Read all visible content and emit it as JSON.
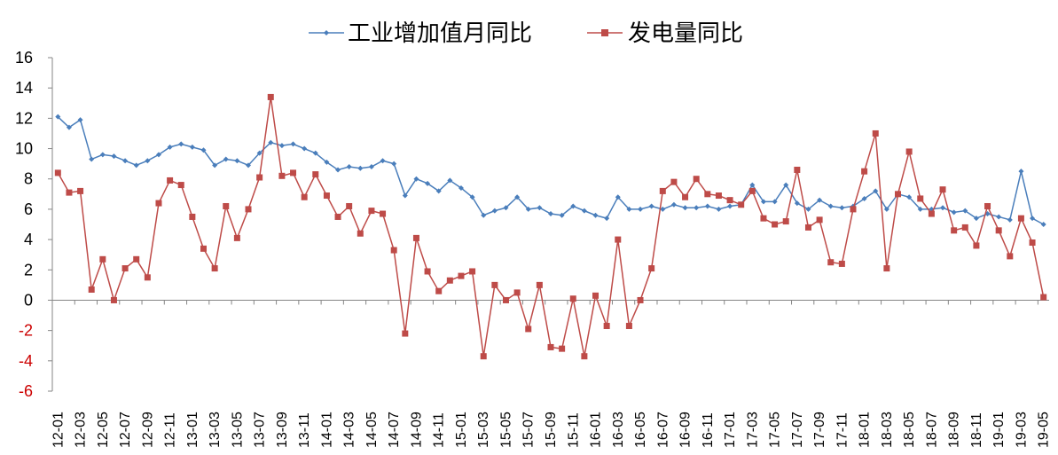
{
  "chart_data": {
    "type": "line",
    "ylim": [
      -6,
      16
    ],
    "yticks": [
      -6,
      -4,
      -2,
      0,
      2,
      4,
      6,
      8,
      10,
      12,
      14,
      16
    ],
    "negative_tick_color": "#cc0000",
    "grid": false,
    "legend_position": "top",
    "x": [
      "12-01",
      "12-02",
      "12-03",
      "12-04",
      "12-05",
      "12-06",
      "12-07",
      "12-08",
      "12-09",
      "12-10",
      "12-11",
      "12-12",
      "13-01",
      "13-02",
      "13-03",
      "13-04",
      "13-05",
      "13-06",
      "13-07",
      "13-08",
      "13-09",
      "13-10",
      "13-11",
      "13-12",
      "14-01",
      "14-02",
      "14-03",
      "14-04",
      "14-05",
      "14-06",
      "14-07",
      "14-08",
      "14-09",
      "14-10",
      "14-11",
      "14-12",
      "15-01",
      "15-02",
      "15-03",
      "15-04",
      "15-05",
      "15-06",
      "15-07",
      "15-08",
      "15-09",
      "15-10",
      "15-11",
      "15-12",
      "16-01",
      "16-02",
      "16-03",
      "16-04",
      "16-05",
      "16-06",
      "16-07",
      "16-08",
      "16-09",
      "16-10",
      "16-11",
      "16-12",
      "17-01",
      "17-02",
      "17-03",
      "17-04",
      "17-05",
      "17-06",
      "17-07",
      "17-08",
      "17-09",
      "17-10",
      "17-11",
      "17-12",
      "18-01",
      "18-02",
      "18-03",
      "18-04",
      "18-05",
      "18-06",
      "18-07",
      "18-08",
      "18-09",
      "18-10",
      "18-11",
      "18-12",
      "19-01",
      "19-02",
      "19-03",
      "19-04",
      "19-05"
    ],
    "xtick_labels": [
      "12-01",
      "12-03",
      "12-05",
      "12-07",
      "12-09",
      "12-11",
      "13-01",
      "13-03",
      "13-05",
      "13-07",
      "13-09",
      "13-11",
      "14-01",
      "14-03",
      "14-05",
      "14-07",
      "14-09",
      "14-11",
      "15-01",
      "15-03",
      "15-05",
      "15-07",
      "15-09",
      "15-11",
      "16-01",
      "16-03",
      "16-05",
      "16-07",
      "16-09",
      "16-11",
      "17-01",
      "17-03",
      "17-05",
      "17-07",
      "17-09",
      "17-11",
      "18-01",
      "18-03",
      "18-05",
      "18-07",
      "18-09",
      "18-11",
      "19-01",
      "19-03",
      "19-05"
    ],
    "series": [
      {
        "name": "工业增加值月同比",
        "color": "#4a7ebb",
        "marker": "diamond",
        "values": [
          12.1,
          11.4,
          11.9,
          9.3,
          9.6,
          9.5,
          9.2,
          8.9,
          9.2,
          9.6,
          10.1,
          10.3,
          10.1,
          9.9,
          8.9,
          9.3,
          9.2,
          8.9,
          9.7,
          10.4,
          10.2,
          10.3,
          10.0,
          9.7,
          9.1,
          8.6,
          8.8,
          8.7,
          8.8,
          9.2,
          9.0,
          6.9,
          8.0,
          7.7,
          7.2,
          7.9,
          7.4,
          6.8,
          5.6,
          5.9,
          6.1,
          6.8,
          6.0,
          6.1,
          5.7,
          5.6,
          6.2,
          5.9,
          5.6,
          5.4,
          6.8,
          6.0,
          6.0,
          6.2,
          6.0,
          6.3,
          6.1,
          6.1,
          6.2,
          6.0,
          6.2,
          6.3,
          7.6,
          6.5,
          6.5,
          7.6,
          6.4,
          6.0,
          6.6,
          6.2,
          6.1,
          6.2,
          6.7,
          7.2,
          6.0,
          7.0,
          6.8,
          6.0,
          6.0,
          6.1,
          5.8,
          5.9,
          5.4,
          5.7,
          5.5,
          5.3,
          8.5,
          5.4,
          5.0
        ]
      },
      {
        "name": "发电量同比",
        "color": "#be4b48",
        "marker": "square",
        "values": [
          8.4,
          7.1,
          7.2,
          0.7,
          2.7,
          0.0,
          2.1,
          2.7,
          1.5,
          6.4,
          7.9,
          7.6,
          5.5,
          3.4,
          2.1,
          6.2,
          4.1,
          6.0,
          8.1,
          13.4,
          8.2,
          8.4,
          6.8,
          8.3,
          6.9,
          5.5,
          6.2,
          4.4,
          5.9,
          5.7,
          3.3,
          -2.2,
          4.1,
          1.9,
          0.6,
          1.3,
          1.6,
          1.9,
          -3.7,
          1.0,
          0.0,
          0.5,
          -1.9,
          1.0,
          -3.1,
          -3.2,
          0.1,
          -3.7,
          0.3,
          -1.7,
          4.0,
          -1.7,
          0.0,
          2.1,
          7.2,
          7.8,
          6.8,
          8.0,
          7.0,
          6.9,
          6.6,
          6.3,
          7.2,
          5.4,
          5.0,
          5.2,
          8.6,
          4.8,
          5.3,
          2.5,
          2.4,
          6.0,
          8.5,
          11.0,
          2.1,
          7.0,
          9.8,
          6.7,
          5.7,
          7.3,
          4.6,
          4.8,
          3.6,
          6.2,
          4.6,
          2.9,
          5.4,
          3.8,
          0.2
        ]
      }
    ]
  }
}
